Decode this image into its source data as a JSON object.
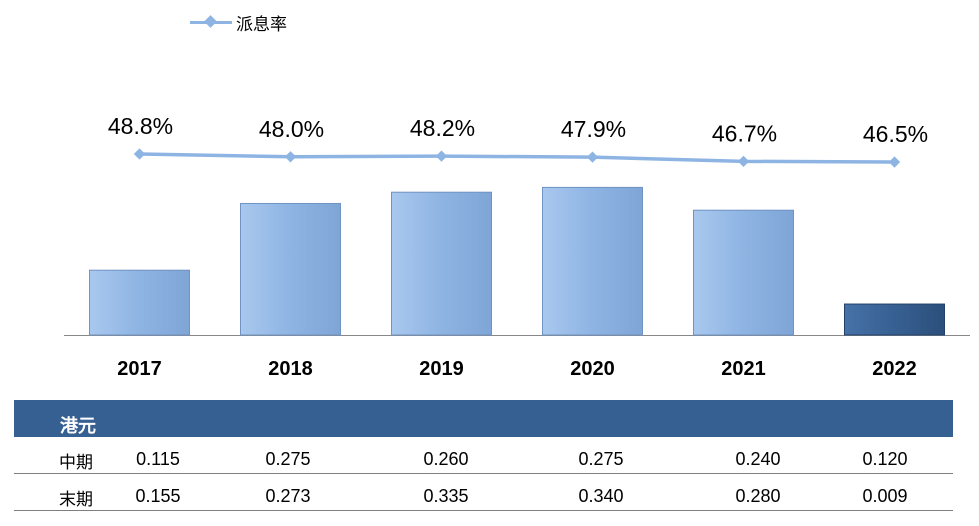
{
  "legend": {
    "label": "派息率"
  },
  "chart_data": {
    "type": "bar",
    "categories": [
      "2017",
      "2018",
      "2019",
      "2020",
      "2021",
      "2022"
    ],
    "series": [
      {
        "type": "bar",
        "values": [
          0.27,
          0.548,
          0.595,
          0.615,
          0.52,
          0.129
        ]
      },
      {
        "name": "派息率",
        "type": "line",
        "values": [
          48.8,
          48.0,
          48.2,
          47.9,
          46.7,
          46.5
        ],
        "labels": [
          "48.8%",
          "48.0%",
          "48.2%",
          "47.9%",
          "46.7%",
          "46.5%"
        ]
      }
    ],
    "colors": {
      "bar": "#8eb4e3",
      "highlight_bar": "#376092",
      "line": "#8eb4e3"
    }
  },
  "table": {
    "unit_header": "港元",
    "rows": [
      {
        "label": "中期",
        "values": [
          "0.115",
          "0.275",
          "0.260",
          "0.275",
          "0.240",
          "0.120"
        ]
      },
      {
        "label": "末期",
        "values": [
          "0.155",
          "0.273",
          "0.335",
          "0.340",
          "0.280",
          "0.009"
        ]
      }
    ]
  }
}
